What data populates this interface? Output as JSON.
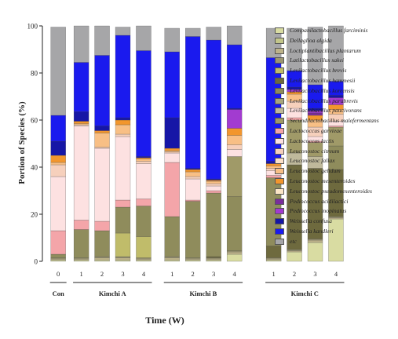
{
  "chart_data": {
    "type": "stacked-bar",
    "ylabel": "Portion of Species (%)",
    "xlabel": "Time (W)",
    "ylim": [
      0,
      100
    ],
    "yticks": [
      0,
      20,
      40,
      60,
      80,
      100
    ],
    "groups": [
      {
        "name": "Con",
        "categories": [
          "0"
        ]
      },
      {
        "name": "Kimchi A",
        "categories": [
          "1",
          "2",
          "3",
          "4"
        ]
      },
      {
        "name": "Kimchi B",
        "categories": [
          "1",
          "2",
          "3",
          "4"
        ]
      },
      {
        "name": "Kimchi C",
        "categories": [
          "1",
          "2",
          "3",
          "4"
        ]
      }
    ],
    "series": [
      {
        "name": "Companilactobacillus farciminis",
        "color": "#d9dca2",
        "values": [
          0.5,
          0.5,
          0.5,
          0.5,
          0.5,
          0.5,
          0.5,
          0.5,
          3,
          0.5,
          4,
          8,
          18
        ]
      },
      {
        "name": "Dellaglioa algida",
        "color": "#c3c68a",
        "values": [
          0,
          0,
          0,
          0,
          0,
          0,
          0,
          0,
          0,
          0,
          0,
          0,
          0
        ]
      },
      {
        "name": "Loctiplantibacillus plantarum",
        "color": "#bdb38a",
        "values": [
          0.5,
          0.5,
          1,
          1,
          0.5,
          1,
          0.5,
          0.5,
          1,
          0.5,
          0.5,
          1,
          0.5
        ]
      },
      {
        "name": "Latilactobacillus sakei",
        "color": "#9c9673",
        "values": [
          0.5,
          0.5,
          0.5,
          0.5,
          0.5,
          0.5,
          0.5,
          0.5,
          0.5,
          0.5,
          0.5,
          0.5,
          0.5
        ]
      },
      {
        "name": "Levilactobacillus brevis",
        "color": "#c0bc6a",
        "values": [
          0,
          0,
          0,
          10,
          9,
          0,
          0,
          0,
          0,
          0,
          0,
          0,
          0
        ]
      },
      {
        "name": "Levilactobacillus hammesii",
        "color": "#6e6a3e",
        "values": [
          0,
          0,
          0,
          0,
          0,
          0,
          0,
          0.5,
          0,
          5,
          36,
          30,
          20
        ]
      },
      {
        "name": "Levilactobacillus koreensis",
        "color": "#8f8c5c",
        "values": [
          1.5,
          12,
          11,
          11,
          13,
          17,
          24,
          27,
          23,
          29,
          0,
          0,
          10
        ]
      },
      {
        "name": "Levilactobacillus parabrevis",
        "color": "#a8a67e",
        "values": [
          0,
          0,
          0,
          0,
          0,
          0,
          0,
          0,
          0,
          0,
          0,
          0,
          0
        ]
      },
      {
        "name": "Levilactobacillus paucivorans",
        "color": "#bfb99b",
        "values": [
          0,
          0,
          0,
          0,
          0,
          0,
          0,
          0,
          0,
          0,
          5,
          5,
          0
        ]
      },
      {
        "name": "Secundilactobacillus malefermentans",
        "color": "#a09a68",
        "values": [
          0,
          0,
          0,
          0,
          0,
          0,
          0,
          0,
          17,
          0,
          14,
          6,
          8
        ]
      },
      {
        "name": "Lactococcus garvieae",
        "color": "#f4a5a9",
        "values": [
          10,
          4,
          4,
          3,
          3,
          23,
          0.5,
          1,
          0,
          1,
          1,
          0.5,
          0.5
        ]
      },
      {
        "name": "Lactococcus lactis",
        "color": "#fde1e1",
        "values": [
          23,
          40,
          31,
          27,
          15,
          4,
          9,
          2,
          3,
          2,
          4,
          2,
          2
        ]
      },
      {
        "name": "Leuconostoc citreum",
        "color": "#f6d0bc",
        "values": [
          5,
          0.5,
          0.5,
          1,
          1,
          0.5,
          1,
          1,
          2,
          1,
          3,
          4,
          3
        ]
      },
      {
        "name": "Leuconostoc fallax",
        "color": "#fbe0c8",
        "values": [
          0,
          0,
          0,
          0,
          0,
          0,
          0,
          0,
          0,
          0,
          0,
          0,
          0
        ]
      },
      {
        "name": "Leuconostoc gelidum",
        "color": "#f8bf85",
        "values": [
          1,
          0.5,
          6,
          4,
          1,
          0.5,
          2,
          1,
          4,
          1,
          3,
          3,
          2
        ]
      },
      {
        "name": "Leuconostoc mesenteroides",
        "color": "#f2962d",
        "values": [
          3,
          1,
          1,
          2,
          0.5,
          1,
          1,
          0.5,
          3,
          1,
          1,
          2,
          2
        ]
      },
      {
        "name": "Leuconostoc pseudomesenteroides",
        "color": "#fbe6c7",
        "values": [
          0,
          0,
          0,
          0,
          0,
          0,
          0,
          0,
          0,
          0,
          0,
          0,
          0
        ]
      },
      {
        "name": "Pediococcus acidilactici",
        "color": "#7a2d9c",
        "values": [
          0,
          0,
          0,
          0,
          0,
          0,
          0,
          0,
          0,
          0,
          0,
          1,
          0
        ]
      },
      {
        "name": "Pediococcus inopinatus",
        "color": "#a23bd0",
        "values": [
          0,
          0,
          0,
          0,
          0,
          0,
          0,
          0,
          8,
          0,
          1,
          1,
          3
        ]
      },
      {
        "name": "Weissella confusa",
        "color": "#1616a6",
        "values": [
          6,
          4,
          2,
          1,
          0.5,
          13,
          0.5,
          0.5,
          0.5,
          1,
          1,
          1,
          1
        ]
      },
      {
        "name": "Weissella kandleri",
        "color": "#1a1aee",
        "values": [
          11,
          21,
          30,
          35,
          45,
          28,
          56,
          59,
          27,
          44,
          7,
          10,
          6
        ]
      },
      {
        "name": "etc",
        "color": "#a6a6a8",
        "values": [
          37.5,
          15.5,
          12.5,
          3.5,
          10.5,
          10,
          3.5,
          5.5,
          8,
          12.5,
          18,
          24.5,
          23.5
        ]
      }
    ]
  }
}
